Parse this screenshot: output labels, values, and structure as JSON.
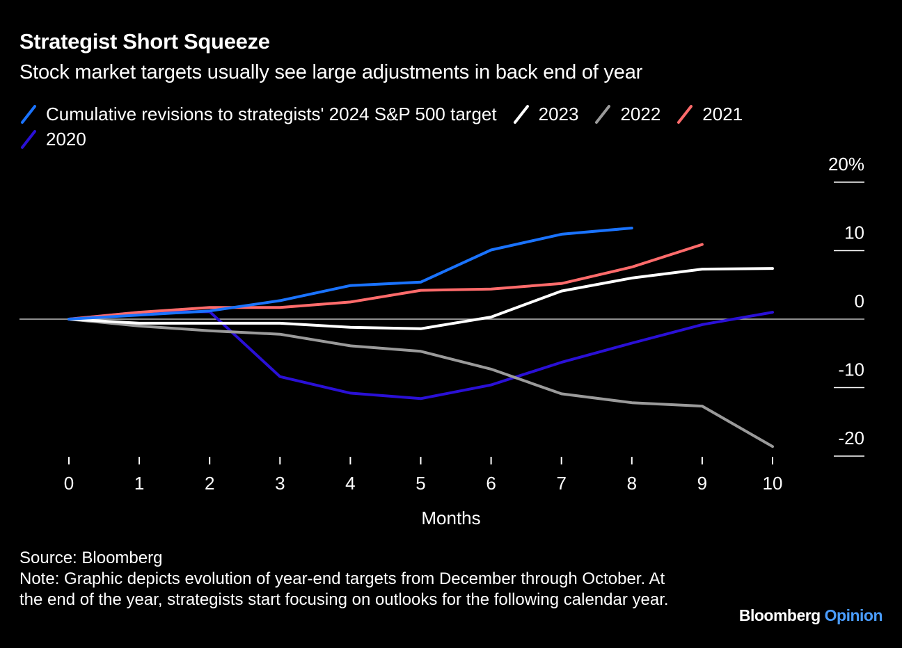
{
  "header": {
    "title": "Strategist Short Squeeze",
    "subtitle": "Stock market targets usually see large adjustments in back end of year"
  },
  "footer": {
    "source": "Source: Bloomberg",
    "note": "Note: Graphic depicts evolution of year-end targets from December through October. At the end of the year, strategists start focusing on outlooks for the following calendar year.",
    "brand_main": "Bloomberg",
    "brand_accent": "Opinion",
    "brand_accent_color": "#4a9dff"
  },
  "chart_data": {
    "type": "line",
    "title": "Strategist Short Squeeze",
    "subtitle": "Stock market targets usually see large adjustments in back end of year",
    "xlabel": "Months",
    "ylabel": "",
    "x": [
      0,
      1,
      2,
      3,
      4,
      5,
      6,
      7,
      8,
      9,
      10
    ],
    "x_ticks": [
      "0",
      "1",
      "2",
      "3",
      "4",
      "5",
      "6",
      "7",
      "8",
      "9",
      "10"
    ],
    "ylim": [
      -20,
      20
    ],
    "y_ticks": [
      20,
      10,
      0,
      -10,
      -20
    ],
    "y_tick_labels": [
      "20%",
      "10",
      "0",
      "-10",
      "-20"
    ],
    "y_axis_side": "right",
    "grid": false,
    "zero_line": true,
    "legend_position": "top-left",
    "series": [
      {
        "name": "Cumulative revisions to strategists' 2024 S&P 500 target",
        "color": "#1a73ff",
        "values": [
          0,
          0.6,
          1.2,
          2.7,
          4.9,
          5.4,
          10.1,
          12.4,
          13.3,
          null,
          null
        ]
      },
      {
        "name": "2023",
        "color": "#ffffff",
        "values": [
          0,
          -0.6,
          -0.6,
          -0.6,
          -1.2,
          -1.4,
          0.3,
          4.1,
          6.0,
          7.3,
          7.4
        ]
      },
      {
        "name": "2022",
        "color": "#9a9a9a",
        "values": [
          0,
          -1.0,
          -1.7,
          -2.2,
          -3.9,
          -4.7,
          -7.3,
          -10.9,
          -12.2,
          -12.7,
          -18.6
        ]
      },
      {
        "name": "2021",
        "color": "#ff6b6b",
        "values": [
          0,
          1.0,
          1.7,
          1.7,
          2.5,
          4.2,
          4.4,
          5.2,
          7.6,
          10.9,
          null
        ]
      },
      {
        "name": "2020",
        "color": "#2a10d6",
        "values": [
          0,
          1.0,
          1.1,
          -8.4,
          -10.8,
          -11.6,
          -9.6,
          -6.3,
          -3.5,
          -0.8,
          1.0
        ]
      }
    ]
  }
}
